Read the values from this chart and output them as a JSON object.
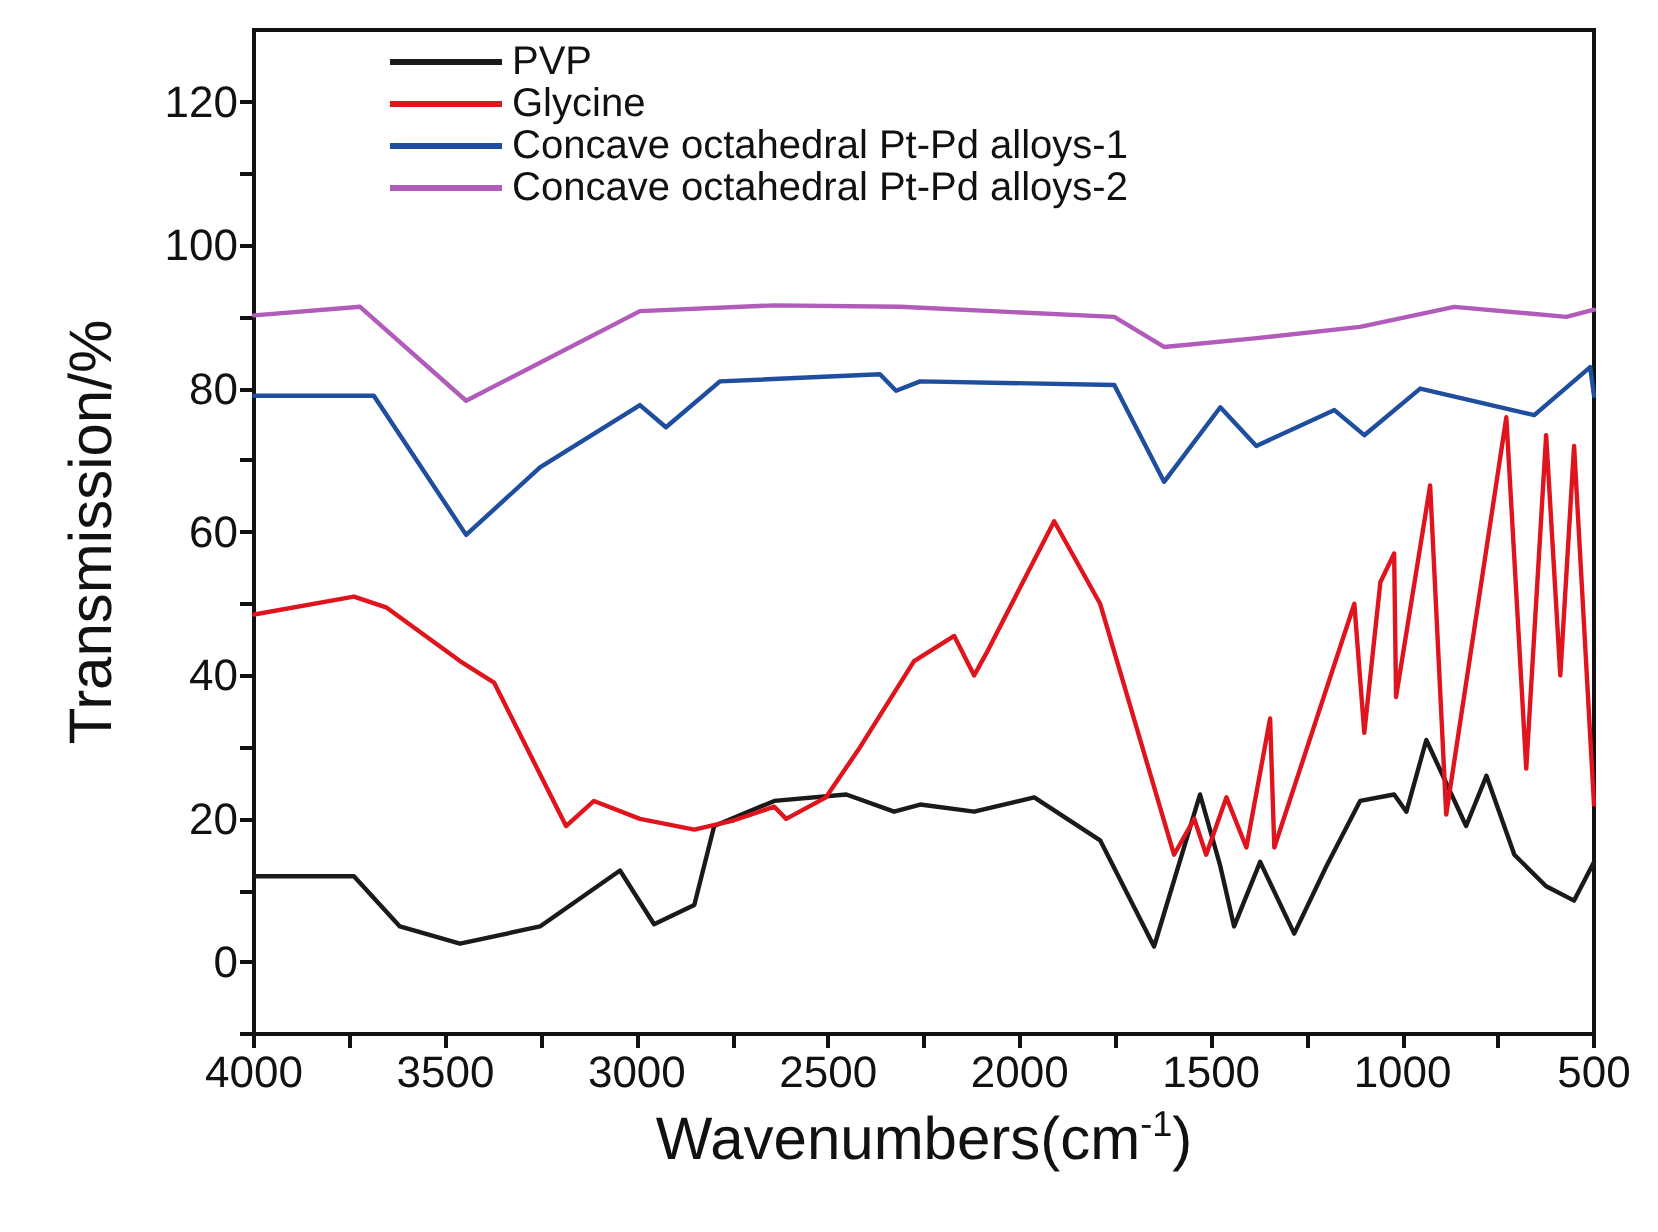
{
  "chart_data": {
    "type": "line",
    "xlabel": "Wavenumbers(cm$^{-1}$)",
    "ylabel": "Transmission/%",
    "xlim": [
      4000,
      500
    ],
    "xticks": [
      4000,
      {
        "value": 3750,
        "label": null
      },
      3500,
      {
        "value": 3250,
        "label": null
      },
      3000,
      {
        "value": 2750,
        "label": null
      },
      2500,
      {
        "value": 2250,
        "label": null
      },
      2000,
      {
        "value": 1750,
        "label": null
      },
      1500,
      {
        "value": 1250,
        "label": null
      },
      1000,
      {
        "value": 750,
        "label": null
      },
      500
    ],
    "ylim": [
      -10,
      130
    ],
    "yticks": [
      {
        "value": -10,
        "label": null
      },
      0,
      {
        "value": 10,
        "label": null
      },
      20,
      {
        "value": 30,
        "label": null
      },
      40,
      {
        "value": 50,
        "label": null
      },
      60,
      {
        "value": 70,
        "label": null
      },
      80,
      {
        "value": 90,
        "label": null
      },
      100,
      {
        "value": 110,
        "label": null
      },
      120
    ],
    "grid": false,
    "legend": "top left",
    "marker": "none",
    "line_style": "solid",
    "series": [
      {
        "name": "PVP",
        "color": "#1a1a1a",
        "x": [
          4000,
          3739,
          3619,
          3462,
          3253,
          3044,
          2955,
          2850,
          2798,
          2641,
          2453,
          2328,
          2260,
          2119,
          1962,
          1790,
          1649,
          1529,
          1476,
          1440,
          1372,
          1283,
          1199,
          1111,
          1022,
          990,
          938,
          834,
          781,
          708,
          625,
          552,
          500
        ],
        "values": [
          12,
          12,
          5,
          2.6,
          5,
          12.8,
          5.3,
          8,
          19,
          22.5,
          23.4,
          21,
          22,
          21,
          23,
          17,
          2.2,
          23.4,
          13.4,
          5,
          14,
          4,
          13.4,
          22.5,
          23.4,
          21,
          31,
          19,
          26,
          15,
          10.6,
          8.6,
          14
        ]
      },
      {
        "name": "Glycine",
        "color": "#e0141c",
        "x": [
          4000,
          3739,
          3655,
          3462,
          3373,
          3185,
          3112,
          2992,
          2850,
          2746,
          2641,
          2610,
          2506,
          2417,
          2276,
          2171,
          2119,
          2088,
          1910,
          1790,
          1597,
          1544,
          1513,
          1460,
          1408,
          1346,
          1335,
          1126,
          1100,
          1058,
          1022,
          1017,
          928,
          886,
          729,
          677,
          625,
          588,
          552,
          500
        ],
        "values": [
          48.5,
          51,
          49.5,
          42,
          39,
          19,
          22.5,
          20,
          18.5,
          19.8,
          21.7,
          20,
          23,
          30,
          42,
          45.5,
          40,
          43,
          61.5,
          50,
          15,
          20,
          15,
          23,
          16,
          34,
          16,
          50,
          32,
          53,
          57,
          37,
          66.5,
          20.6,
          76,
          27,
          73.5,
          40,
          72,
          22
        ]
      },
      {
        "name": "Concave octahedral Pt-Pd alloys-1",
        "color": "#1f4e9e",
        "x": [
          4000,
          3687,
          3446,
          3253,
          2992,
          2924,
          2783,
          2365,
          2323,
          2260,
          1753,
          1623,
          1476,
          1382,
          1178,
          1100,
          954,
          656,
          510,
          500
        ],
        "values": [
          79,
          79,
          59.6,
          69,
          77.7,
          74.6,
          81,
          82,
          79.7,
          81,
          80.5,
          67,
          77.4,
          72,
          77,
          73.5,
          80,
          76.3,
          83,
          79
        ]
      },
      {
        "name": "Concave octahedral Pt-Pd alloys-2",
        "color": "#b05cb8",
        "x": [
          4000,
          3723,
          3446,
          2992,
          2641,
          2312,
          1753,
          1623,
          1387,
          1111,
          865,
          572,
          500
        ],
        "values": [
          90.2,
          91.4,
          78.3,
          90.8,
          91.6,
          91.4,
          90,
          85.8,
          87,
          88.6,
          91.4,
          90,
          91
        ]
      }
    ]
  }
}
